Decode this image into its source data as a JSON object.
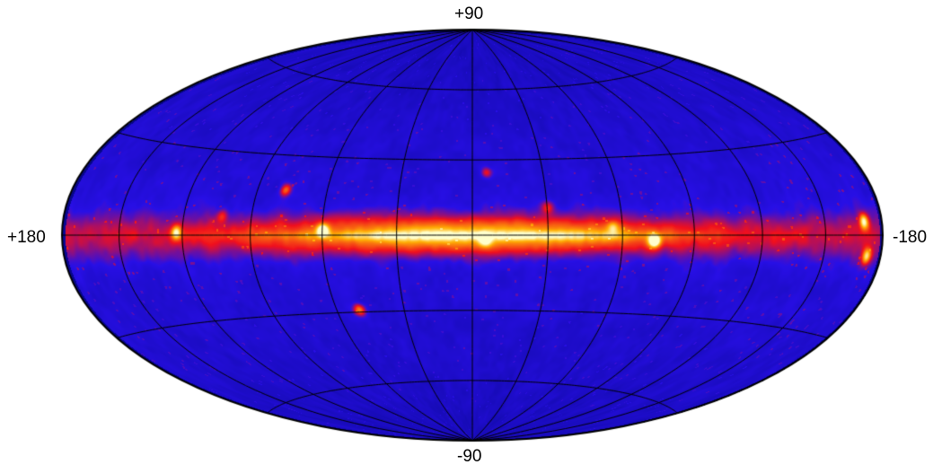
{
  "map": {
    "projection": "hammer-aitoff",
    "top_label": "+90",
    "bottom_label": "-90",
    "left_label": "+180",
    "right_label": "-180",
    "graticule_latitudes_deg": [
      -60,
      -30,
      0,
      30,
      60
    ],
    "graticule_longitudes_deg": [
      -150,
      -120,
      -90,
      -60,
      -30,
      0,
      30,
      60,
      90,
      120,
      150
    ],
    "colors": {
      "background_sky": "#0a14c8",
      "plane_glow": "#ff1a0a",
      "plane_core": "#ffe13c",
      "graticule": "#000000",
      "page": "#ffffff"
    },
    "galactic_plane": {
      "peak_longitude_deg": 0,
      "half_width_deg": 5
    },
    "bright_sources": [
      {
        "lon_deg": -73,
        "lat_deg": -2,
        "strength": 1.0
      },
      {
        "lon_deg": 60,
        "lat_deg": 2,
        "strength": 0.9
      },
      {
        "lon_deg": 123,
        "lat_deg": 1,
        "strength": 0.7
      },
      {
        "lon_deg": -170,
        "lat_deg": 4,
        "strength": 0.8
      },
      {
        "lon_deg": -172,
        "lat_deg": -6,
        "strength": 0.7
      },
      {
        "lon_deg": 78,
        "lat_deg": 17,
        "strength": 0.5
      },
      {
        "lon_deg": 50,
        "lat_deg": -29,
        "strength": 0.6
      },
      {
        "lon_deg": -6,
        "lat_deg": 25,
        "strength": 0.4
      },
      {
        "lon_deg": -30,
        "lat_deg": 11,
        "strength": 0.3
      },
      {
        "lon_deg": -56,
        "lat_deg": 3,
        "strength": 0.4
      },
      {
        "lon_deg": -5,
        "lat_deg": -2,
        "strength": 0.5
      },
      {
        "lon_deg": 103,
        "lat_deg": 7,
        "strength": 0.3
      }
    ]
  }
}
